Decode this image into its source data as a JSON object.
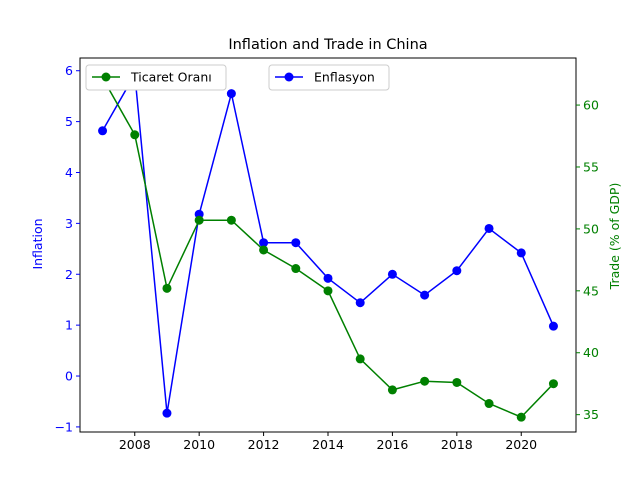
{
  "chart_data": {
    "type": "line",
    "title": "Inflation and Trade in China",
    "x": [
      2007,
      2008,
      2009,
      2010,
      2011,
      2012,
      2013,
      2014,
      2015,
      2016,
      2017,
      2018,
      2019,
      2020,
      2021
    ],
    "x_ticks": [
      "2008",
      "2010",
      "2012",
      "2014",
      "2016",
      "2018",
      "2020"
    ],
    "xlim": [
      2006.3,
      2021.7
    ],
    "left_axis": {
      "label": "Inflation",
      "ylim": [
        -1.1,
        6.25
      ],
      "ticks": [
        "−1",
        "0",
        "1",
        "2",
        "3",
        "4",
        "5",
        "6"
      ],
      "color": "#0000ff"
    },
    "right_axis": {
      "label": "Trade (% of GDP)",
      "ylim": [
        33.6,
        63.8
      ],
      "ticks": [
        "35",
        "40",
        "45",
        "50",
        "55",
        "60"
      ],
      "color": "#008000"
    },
    "series": [
      {
        "name": "Enflasyon",
        "axis": "left",
        "color": "#0000ff",
        "values": [
          4.82,
          5.93,
          -0.73,
          3.18,
          5.55,
          2.62,
          2.62,
          1.92,
          1.44,
          2.0,
          1.59,
          2.07,
          2.9,
          2.42,
          0.98
        ]
      },
      {
        "name": "Ticaret Oranı",
        "axis": "right",
        "color": "#008000",
        "values": [
          62.2,
          57.6,
          45.2,
          50.7,
          50.7,
          48.3,
          46.8,
          45.0,
          39.5,
          37.0,
          37.7,
          37.6,
          35.9,
          34.8,
          37.5
        ]
      }
    ],
    "legends": [
      "upper-left: Ticaret Oranı",
      "upper-center: Enflasyon"
    ],
    "grid": false
  }
}
